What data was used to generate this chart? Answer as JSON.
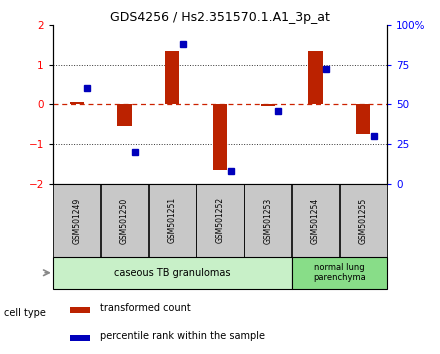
{
  "title": "GDS4256 / Hs2.351570.1.A1_3p_at",
  "samples": [
    "GSM501249",
    "GSM501250",
    "GSM501251",
    "GSM501252",
    "GSM501253",
    "GSM501254",
    "GSM501255"
  ],
  "transformed_counts": [
    0.05,
    -0.55,
    1.35,
    -1.65,
    -0.05,
    1.35,
    -0.75
  ],
  "pr_pct": [
    60,
    20,
    88,
    8,
    46,
    72,
    30
  ],
  "ylim_left": [
    -2,
    2
  ],
  "ylim_right": [
    0,
    100
  ],
  "yticks_left": [
    -2,
    -1,
    0,
    1,
    2
  ],
  "yticks_right": [
    0,
    25,
    50,
    75,
    100
  ],
  "ytick_labels_right": [
    "0",
    "25",
    "50",
    "75",
    "100%"
  ],
  "group1_count": 5,
  "group2_count": 2,
  "group1_label": "caseous TB granulomas",
  "group2_label": "normal lung\nparenchyma",
  "cell_type_label": "cell type",
  "legend_red": "transformed count",
  "legend_blue": "percentile rank within the sample",
  "bar_color_red": "#bb2200",
  "bar_color_blue": "#0000bb",
  "bar_width": 0.3,
  "bg_color_plot": "#ffffff",
  "sample_box_color": "#c8c8c8",
  "group1_bg": "#c8f0c8",
  "group2_bg": "#88dd88",
  "zero_line_color": "#cc2200",
  "grid_color": "#333333",
  "title_fontsize": 9
}
